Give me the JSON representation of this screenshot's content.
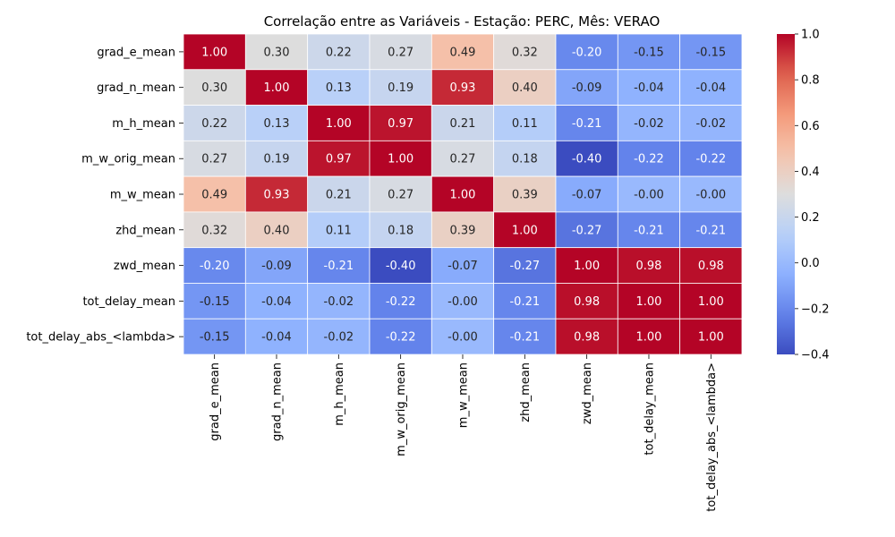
{
  "chart_data": {
    "type": "heatmap",
    "title": "Correlação entre as Variáveis - Estação: PERC, Mês: VERAO",
    "rows": [
      "grad_e_mean",
      "grad_n_mean",
      "m_h_mean",
      "m_w_orig_mean",
      "m_w_mean",
      "zhd_mean",
      "zwd_mean",
      "tot_delay_mean",
      "tot_delay_abs_<lambda>"
    ],
    "columns": [
      "grad_e_mean",
      "grad_n_mean",
      "m_h_mean",
      "m_w_orig_mean",
      "m_w_mean",
      "zhd_mean",
      "zwd_mean",
      "tot_delay_mean",
      "tot_delay_abs_<lambda>"
    ],
    "values": [
      [
        "1.00",
        "0.30",
        "0.22",
        "0.27",
        "0.49",
        "0.32",
        "-0.20",
        "-0.15",
        "-0.15"
      ],
      [
        "0.30",
        "1.00",
        "0.13",
        "0.19",
        "0.93",
        "0.40",
        "-0.09",
        "-0.04",
        "-0.04"
      ],
      [
        "0.22",
        "0.13",
        "1.00",
        "0.97",
        "0.21",
        "0.11",
        "-0.21",
        "-0.02",
        "-0.02"
      ],
      [
        "0.27",
        "0.19",
        "0.97",
        "1.00",
        "0.27",
        "0.18",
        "-0.40",
        "-0.22",
        "-0.22"
      ],
      [
        "0.49",
        "0.93",
        "0.21",
        "0.27",
        "1.00",
        "0.39",
        "-0.07",
        "-0.00",
        "-0.00"
      ],
      [
        "0.32",
        "0.40",
        "0.11",
        "0.18",
        "0.39",
        "1.00",
        "-0.27",
        "-0.21",
        "-0.21"
      ],
      [
        "-0.20",
        "-0.09",
        "-0.21",
        "-0.40",
        "-0.07",
        "-0.27",
        "1.00",
        "0.98",
        "0.98"
      ],
      [
        "-0.15",
        "-0.04",
        "-0.02",
        "-0.22",
        "-0.00",
        "-0.21",
        "0.98",
        "1.00",
        "1.00"
      ],
      [
        "-0.15",
        "-0.04",
        "-0.02",
        "-0.22",
        "-0.00",
        "-0.21",
        "0.98",
        "1.00",
        "1.00"
      ]
    ],
    "colorbar": {
      "range": [
        -0.4,
        1.0
      ],
      "ticks": [
        "1.0",
        "0.8",
        "0.6",
        "0.4",
        "0.2",
        "0.0",
        "−0.2",
        "−0.4"
      ],
      "colormap": "coolwarm"
    },
    "grid": false,
    "legend": "colorbar-right"
  }
}
